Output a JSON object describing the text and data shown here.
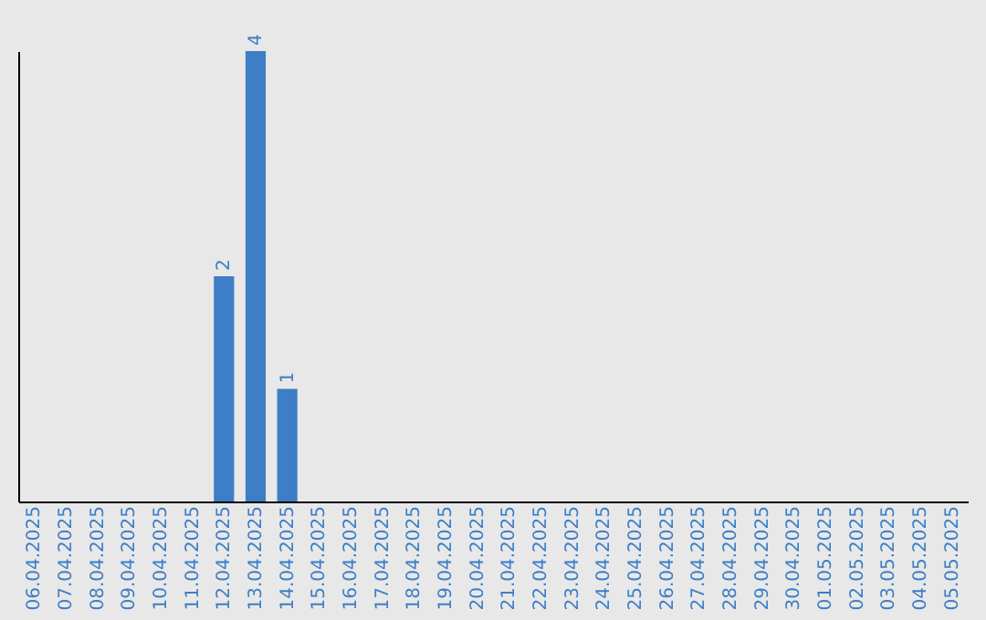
{
  "chart_data": {
    "type": "bar",
    "categories": [
      "06.04.2025",
      "07.04.2025",
      "08.04.2025",
      "09.04.2025",
      "10.04.2025",
      "11.04.2025",
      "12.04.2025",
      "13.04.2025",
      "14.04.2025",
      "15.04.2025",
      "16.04.2025",
      "17.04.2025",
      "18.04.2025",
      "19.04.2025",
      "20.04.2025",
      "21.04.2025",
      "22.04.2025",
      "23.04.2025",
      "24.04.2025",
      "25.04.2025",
      "26.04.2025",
      "27.04.2025",
      "28.04.2025",
      "29.04.2025",
      "30.04.2025",
      "01.05.2025",
      "02.05.2025",
      "03.05.2025",
      "04.05.2025",
      "05.05.2025"
    ],
    "values": [
      0,
      0,
      0,
      0,
      0,
      0,
      2,
      4,
      1,
      0,
      0,
      0,
      0,
      0,
      0,
      0,
      0,
      0,
      0,
      0,
      0,
      0,
      0,
      0,
      0,
      0,
      0,
      0,
      0,
      0
    ],
    "value_labels": [
      null,
      null,
      null,
      null,
      null,
      null,
      "2",
      "4",
      "1",
      null,
      null,
      null,
      null,
      null,
      null,
      null,
      null,
      null,
      null,
      null,
      null,
      null,
      null,
      null,
      null,
      null,
      null,
      null,
      null,
      null
    ],
    "color": "#3d7ec6",
    "grid": false,
    "tick_labels": "x"
  }
}
